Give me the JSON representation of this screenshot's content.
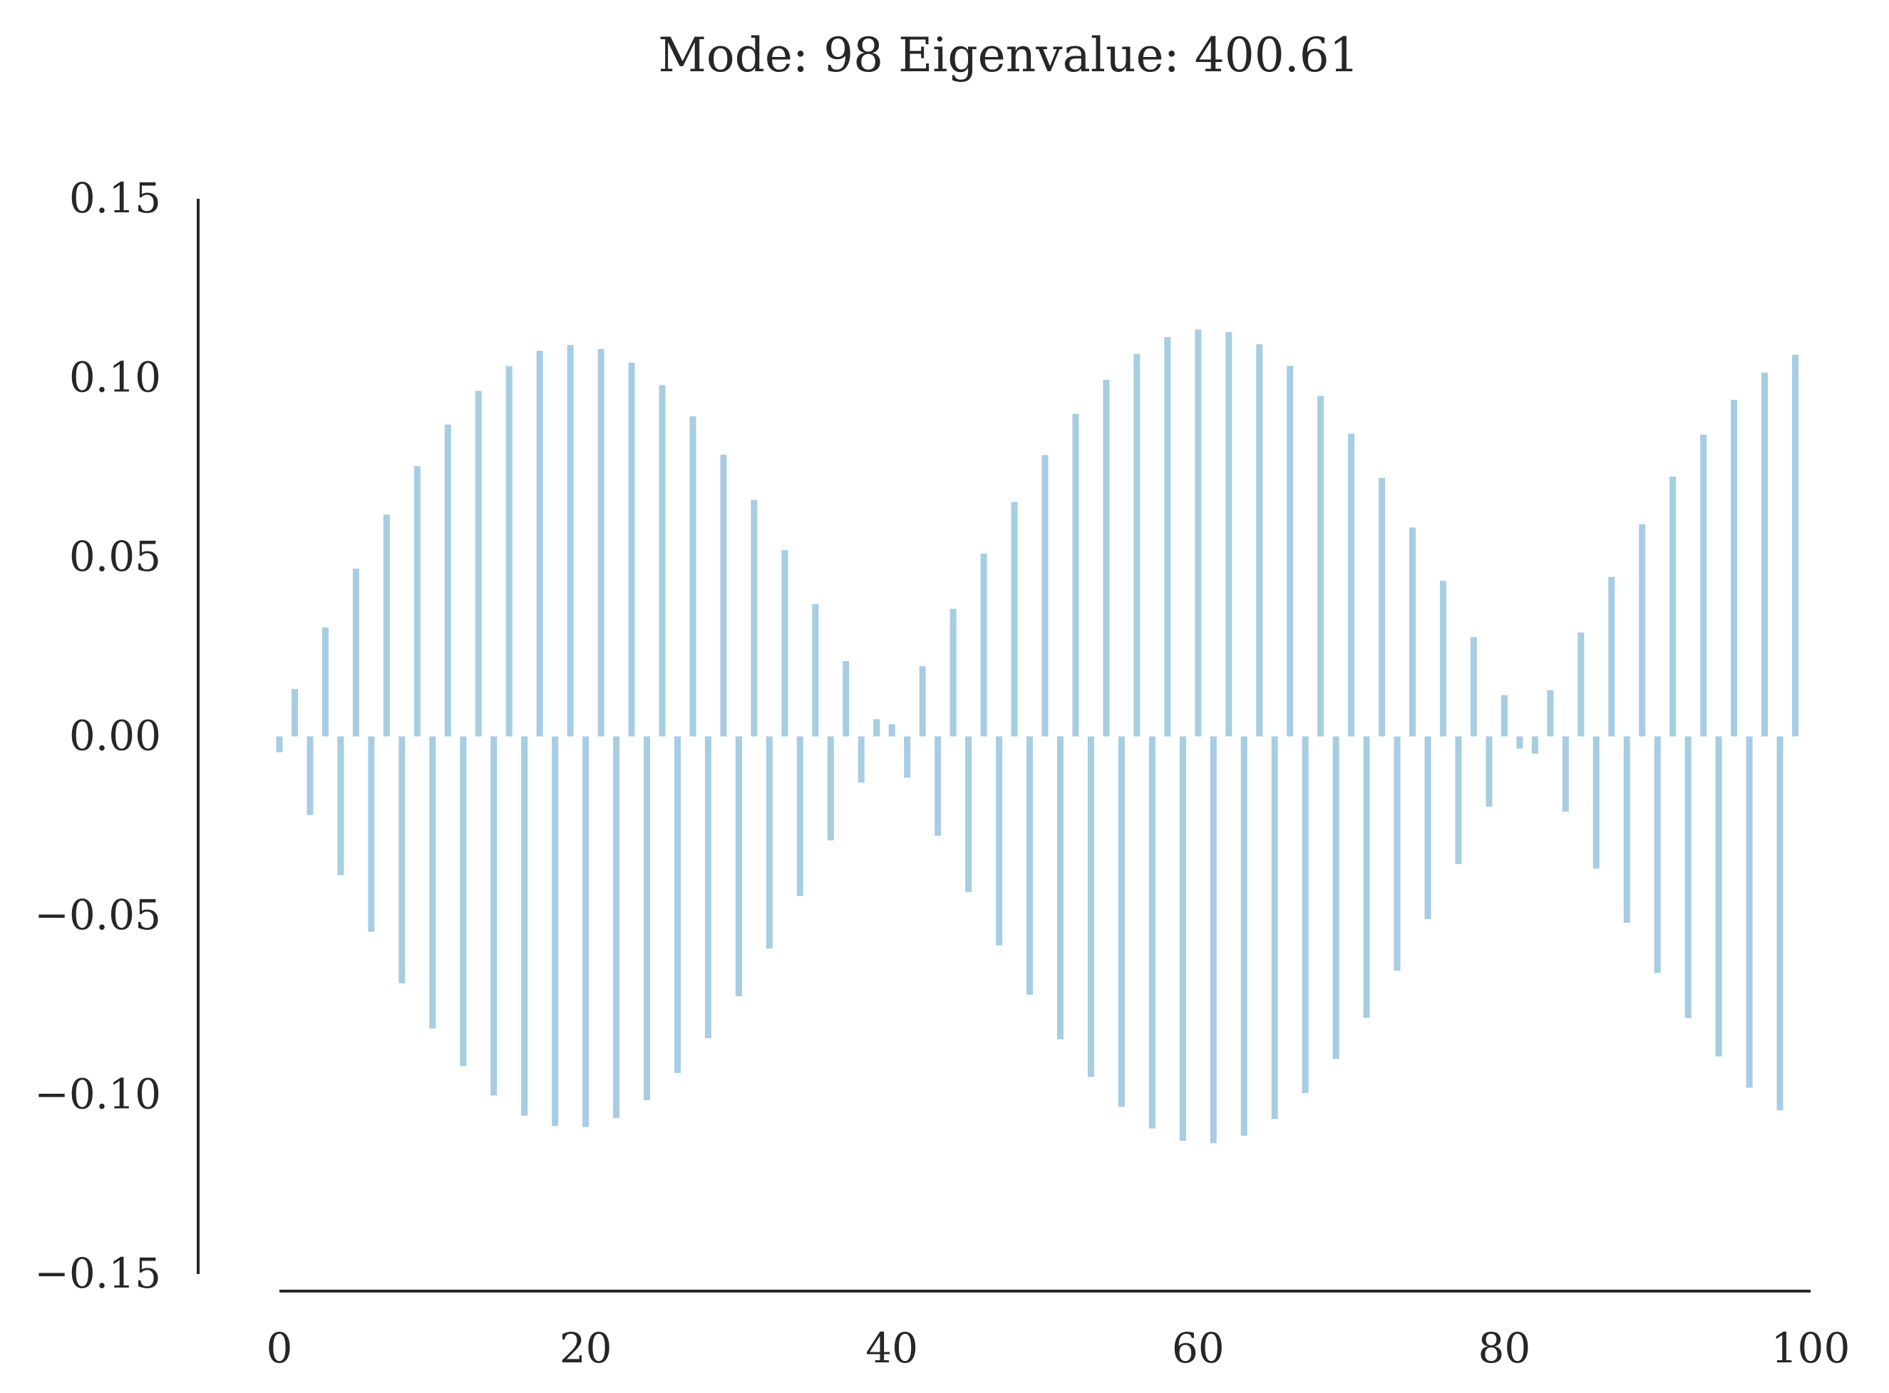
{
  "chart_data": {
    "type": "bar",
    "title": "Mode: 98 Eigenvalue: 400.61",
    "xlabel": "",
    "ylabel": "",
    "xlim": [
      0,
      100
    ],
    "ylim": [
      -0.15,
      0.15
    ],
    "x_ticks": [
      0,
      20,
      40,
      60,
      80,
      100
    ],
    "x_tick_labels": [
      "0",
      "20",
      "40",
      "60",
      "80",
      "100"
    ],
    "y_ticks": [
      0.15,
      0.1,
      0.05,
      0.0,
      -0.05,
      -0.1,
      -0.15
    ],
    "y_tick_labels": [
      "0.15",
      "0.10",
      "0.05",
      "0.00",
      "−0.05",
      "−0.10",
      "−0.15"
    ],
    "grid": false,
    "bar_color": "#a6cde2",
    "axis_color": "#262626",
    "x": [
      0,
      1,
      2,
      3,
      4,
      5,
      6,
      7,
      8,
      9,
      10,
      11,
      12,
      13,
      14,
      15,
      16,
      17,
      18,
      19,
      20,
      21,
      22,
      23,
      24,
      25,
      26,
      27,
      28,
      29,
      30,
      31,
      32,
      33,
      34,
      35,
      36,
      37,
      38,
      39,
      40,
      41,
      42,
      43,
      44,
      45,
      46,
      47,
      48,
      49,
      50,
      51,
      52,
      53,
      54,
      55,
      56,
      57,
      58,
      59,
      60,
      61,
      62,
      63,
      64,
      65,
      66,
      67,
      68,
      69,
      70,
      71,
      72,
      73,
      74,
      75,
      76,
      77,
      78,
      79,
      80,
      81,
      82,
      83,
      84,
      85,
      86,
      87,
      88,
      89,
      90,
      91,
      92,
      93,
      94,
      95,
      96,
      97,
      98,
      99
    ],
    "values": [
      -0.0044,
      0.0132,
      -0.0219,
      0.0304,
      -0.0387,
      0.0468,
      -0.0545,
      0.0619,
      -0.0689,
      0.0754,
      -0.0815,
      0.087,
      -0.092,
      0.0964,
      -0.1002,
      0.1033,
      -0.1058,
      0.1076,
      -0.1087,
      0.1092,
      -0.109,
      0.1081,
      -0.1065,
      0.1043,
      -0.1015,
      0.098,
      -0.0939,
      0.0893,
      -0.0842,
      0.0786,
      -0.0725,
      0.066,
      -0.0592,
      0.052,
      -0.0445,
      0.0369,
      -0.029,
      0.021,
      -0.0129,
      0.0048,
      0.0034,
      -0.0115,
      0.0196,
      -0.0277,
      0.0356,
      -0.0434,
      0.051,
      -0.0583,
      0.0654,
      -0.0721,
      0.0785,
      -0.0845,
      0.09,
      -0.095,
      0.0995,
      -0.1034,
      0.1067,
      -0.1094,
      0.1114,
      -0.1128,
      0.1135,
      -0.1135,
      0.1128,
      -0.1114,
      0.1094,
      -0.1067,
      0.1034,
      -0.0995,
      0.095,
      -0.09,
      0.0845,
      -0.0785,
      0.0721,
      -0.0654,
      0.0583,
      -0.051,
      0.0434,
      -0.0356,
      0.0277,
      -0.0196,
      0.0115,
      -0.0034,
      -0.0048,
      0.0129,
      -0.021,
      0.029,
      -0.0369,
      0.0445,
      -0.052,
      0.0592,
      -0.066,
      0.0725,
      -0.0786,
      0.0842,
      -0.0893,
      0.0939,
      -0.098,
      0.1015,
      -0.1043,
      0.1065
    ]
  }
}
